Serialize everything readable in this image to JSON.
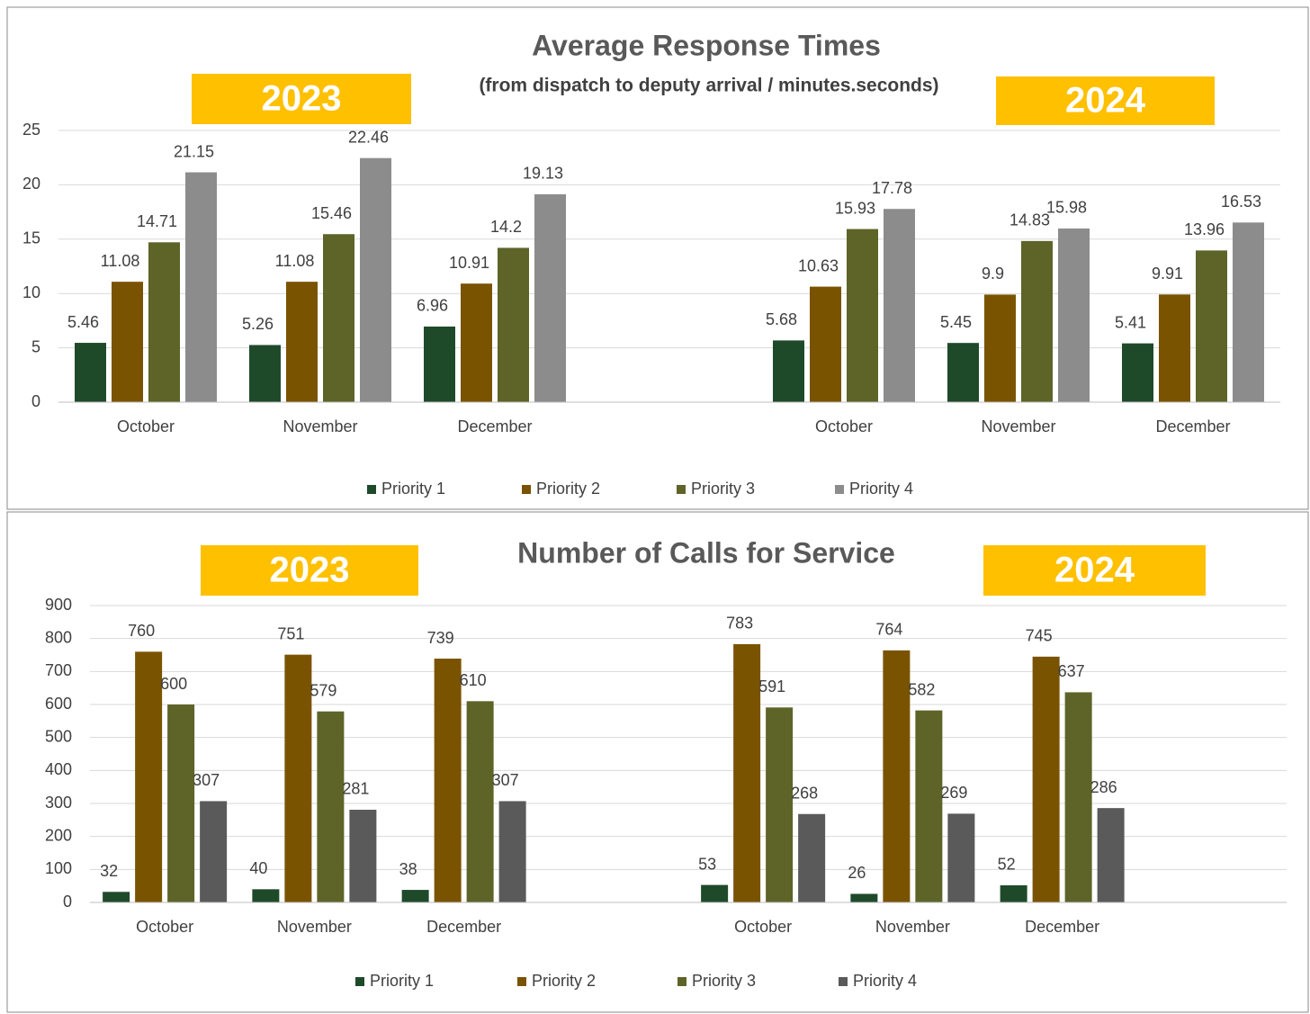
{
  "chart_data": [
    {
      "type": "bar",
      "title": "Average Response Times",
      "subtitle": "(from dispatch to deputy arrival / minutes.seconds)",
      "annotations": [
        "2023",
        "2024"
      ],
      "categories": [
        "October",
        "November",
        "December",
        null,
        "October",
        "November",
        "December"
      ],
      "series": [
        {
          "name": "Priority 1",
          "color": "#1f4a2a",
          "values": [
            5.46,
            5.26,
            6.96,
            null,
            5.68,
            5.45,
            5.41
          ]
        },
        {
          "name": "Priority 2",
          "color": "#7a5300",
          "values": [
            11.08,
            11.08,
            10.91,
            null,
            10.63,
            9.9,
            9.91
          ]
        },
        {
          "name": "Priority 3",
          "color": "#5e6428",
          "values": [
            14.71,
            15.46,
            14.2,
            null,
            15.93,
            14.83,
            13.96
          ]
        },
        {
          "name": "Priority 4",
          "color": "#8c8c8c",
          "values": [
            21.15,
            22.46,
            19.13,
            null,
            17.78,
            15.98,
            16.53
          ]
        }
      ],
      "ylim": [
        0,
        25
      ],
      "yticks": [
        0,
        5,
        10,
        15,
        20,
        25
      ],
      "grid": true,
      "legend": "bottom"
    },
    {
      "type": "bar",
      "title": "Number of Calls for Service",
      "annotations": [
        "2023",
        "2024"
      ],
      "categories": [
        "October",
        "November",
        "December",
        null,
        "October",
        "November",
        "December",
        null
      ],
      "series": [
        {
          "name": "Priority 1",
          "color": "#1f4a2a",
          "values": [
            32,
            40,
            38,
            null,
            53,
            26,
            52,
            null
          ]
        },
        {
          "name": "Priority 2",
          "color": "#7a5300",
          "values": [
            760,
            751,
            739,
            null,
            783,
            764,
            745,
            null
          ]
        },
        {
          "name": "Priority 3",
          "color": "#5e6428",
          "values": [
            600,
            579,
            610,
            null,
            591,
            582,
            637,
            null
          ]
        },
        {
          "name": "Priority 4",
          "color": "#5a5a5a",
          "values": [
            307,
            281,
            307,
            null,
            268,
            269,
            286,
            null
          ]
        }
      ],
      "ylim": [
        0,
        900
      ],
      "yticks": [
        0,
        100,
        200,
        300,
        400,
        500,
        600,
        700,
        800,
        900
      ],
      "grid": true,
      "legend": "bottom"
    }
  ]
}
